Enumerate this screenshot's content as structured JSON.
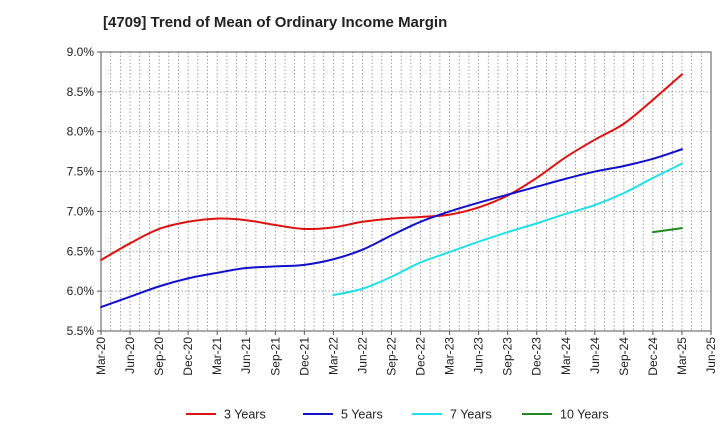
{
  "chart_data": {
    "type": "line",
    "title": "[4709]  Trend of Mean of Ordinary Income Margin",
    "xlabel": "",
    "ylabel": "",
    "x_ticks": [
      "Mar-20",
      "Jun-20",
      "Sep-20",
      "Dec-20",
      "Mar-21",
      "Jun-21",
      "Sep-21",
      "Dec-21",
      "Mar-22",
      "Jun-22",
      "Sep-22",
      "Dec-22",
      "Mar-23",
      "Jun-23",
      "Sep-23",
      "Dec-23",
      "Mar-24",
      "Jun-24",
      "Sep-24",
      "Dec-24",
      "Mar-25",
      "Jun-25"
    ],
    "y_ticks": [
      "5.5%",
      "6.0%",
      "6.5%",
      "7.0%",
      "7.5%",
      "8.0%",
      "8.5%",
      "9.0%"
    ],
    "ylim": [
      5.5,
      9.0
    ],
    "grid": true,
    "legend_position": "bottom",
    "series": [
      {
        "name": "3 Years",
        "color": "#dd1111",
        "x": [
          "Mar-20",
          "Jun-20",
          "Sep-20",
          "Dec-20",
          "Mar-21",
          "Jun-21",
          "Sep-21",
          "Dec-21",
          "Mar-22",
          "Jun-22",
          "Sep-22",
          "Dec-22",
          "Mar-23",
          "Jun-23",
          "Sep-23",
          "Dec-23",
          "Mar-24",
          "Jun-24",
          "Sep-24",
          "Dec-24",
          "Mar-25"
        ],
        "values": [
          6.39,
          6.6,
          6.78,
          6.87,
          6.91,
          6.89,
          6.83,
          6.78,
          6.8,
          6.87,
          6.91,
          6.93,
          6.96,
          7.05,
          7.2,
          7.42,
          7.68,
          7.9,
          8.1,
          8.4,
          8.72
        ]
      },
      {
        "name": "5 Years",
        "color": "#1111cc",
        "x": [
          "Mar-20",
          "Jun-20",
          "Sep-20",
          "Dec-20",
          "Mar-21",
          "Jun-21",
          "Sep-21",
          "Dec-21",
          "Mar-22",
          "Jun-22",
          "Sep-22",
          "Dec-22",
          "Mar-23",
          "Jun-23",
          "Sep-23",
          "Dec-23",
          "Mar-24",
          "Jun-24",
          "Sep-24",
          "Dec-24",
          "Mar-25"
        ],
        "values": [
          5.8,
          5.93,
          6.06,
          6.16,
          6.23,
          6.29,
          6.31,
          6.33,
          6.4,
          6.52,
          6.7,
          6.87,
          7.0,
          7.11,
          7.21,
          7.31,
          7.41,
          7.5,
          7.57,
          7.66,
          7.78
        ]
      },
      {
        "name": "7 Years",
        "color": "#22e0e8",
        "x": [
          "Mar-22",
          "Jun-22",
          "Sep-22",
          "Dec-22",
          "Mar-23",
          "Jun-23",
          "Sep-23",
          "Dec-23",
          "Mar-24",
          "Jun-24",
          "Sep-24",
          "Dec-24",
          "Mar-25"
        ],
        "values": [
          5.95,
          6.03,
          6.18,
          6.36,
          6.49,
          6.62,
          6.74,
          6.85,
          6.97,
          7.08,
          7.23,
          7.42,
          7.6
        ]
      },
      {
        "name": "10 Years",
        "color": "#228822",
        "x": [
          "Dec-24",
          "Mar-25"
        ],
        "values": [
          6.74,
          6.79
        ]
      }
    ]
  }
}
